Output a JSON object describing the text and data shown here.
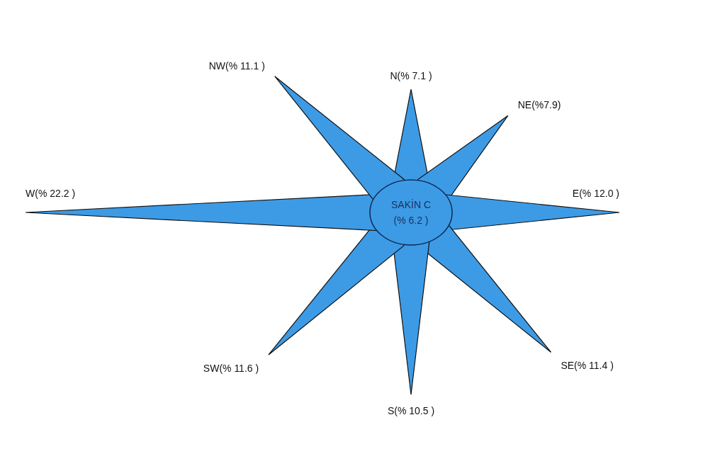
{
  "chart_data": {
    "type": "other",
    "categories": [
      "N",
      "NE",
      "E",
      "SE",
      "S",
      "SW",
      "W",
      "NW"
    ],
    "values": [
      7.1,
      7.9,
      12.0,
      11.4,
      10.5,
      11.6,
      22.2,
      11.1
    ],
    "value_labels": [
      "(% 7.1 )",
      "(%7.9)",
      "(% 12.0 )",
      "(% 11.4 )",
      "(% 10.5 )",
      "(% 11.6 )",
      "(% 22.2 )",
      "(% 11.1 )"
    ],
    "color": "#3d9be6",
    "annotations": [
      "SAKİN C",
      "(% 6.2 )"
    ]
  }
}
